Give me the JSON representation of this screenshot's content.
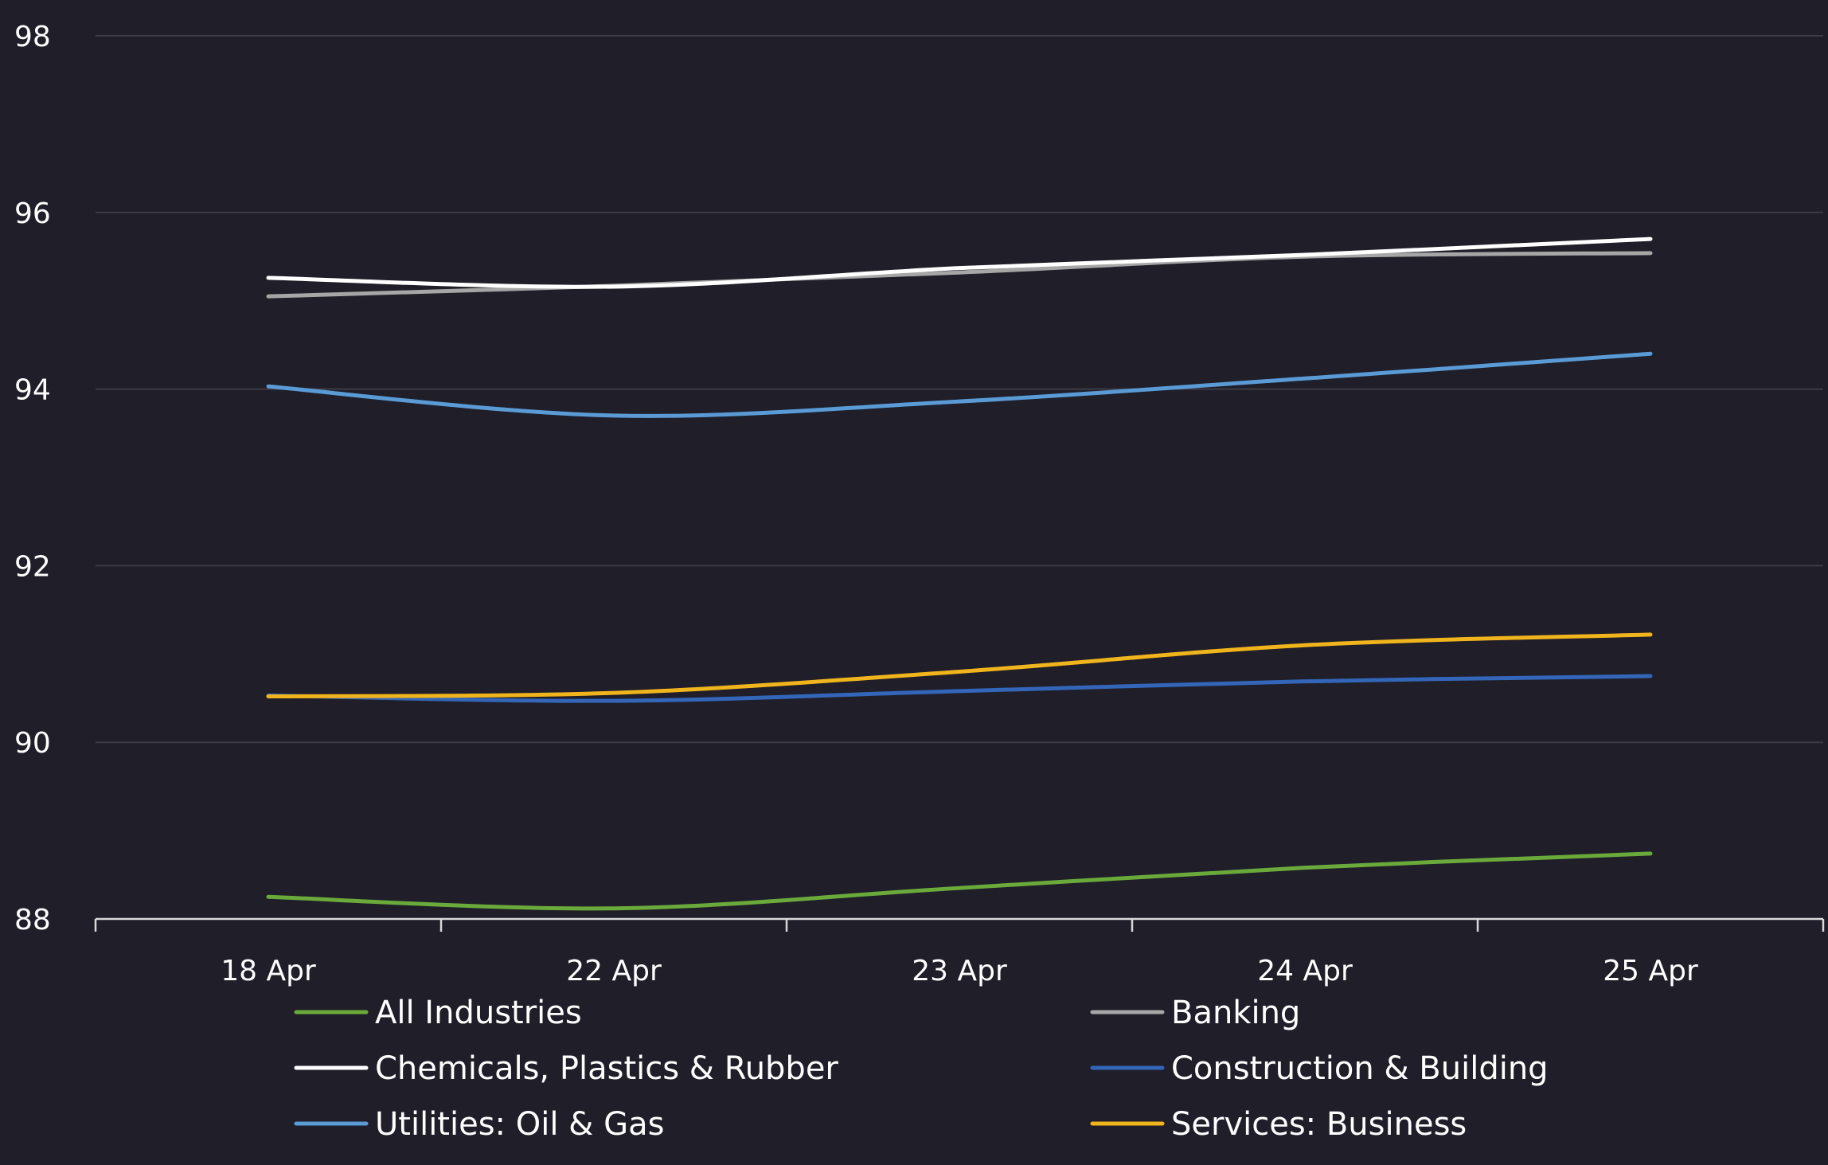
{
  "chart_data": {
    "type": "line",
    "title": "",
    "xlabel": "",
    "ylabel": "",
    "categories": [
      "18 Apr",
      "22 Apr",
      "23 Apr",
      "24 Apr",
      "25 Apr"
    ],
    "ylim": [
      88,
      98
    ],
    "yticks": [
      88,
      90,
      92,
      94,
      96,
      98
    ],
    "grid": true,
    "legend_position": "bottom",
    "background": "#1f1e29",
    "series": [
      {
        "name": "All Industries",
        "color": "#6aaa3a",
        "values": [
          88.25,
          88.12,
          88.35,
          88.58,
          88.74
        ]
      },
      {
        "name": "Banking",
        "color": "#a6a6a6",
        "values": [
          95.05,
          95.17,
          95.32,
          95.5,
          95.54
        ]
      },
      {
        "name": "Chemicals, Plastics & Rubber",
        "color": "#ffffff",
        "values": [
          95.26,
          95.16,
          95.37,
          95.52,
          95.7
        ]
      },
      {
        "name": "Construction & Building",
        "color": "#3366b8",
        "values": [
          90.53,
          90.47,
          90.58,
          90.69,
          90.75
        ]
      },
      {
        "name": "Utilities: Oil & Gas",
        "color": "#5a9bd5",
        "values": [
          94.03,
          93.7,
          93.86,
          94.12,
          94.4
        ]
      },
      {
        "name": "Services: Business",
        "color": "#f0b41c",
        "values": [
          90.52,
          90.56,
          90.8,
          91.1,
          91.22
        ]
      }
    ]
  }
}
